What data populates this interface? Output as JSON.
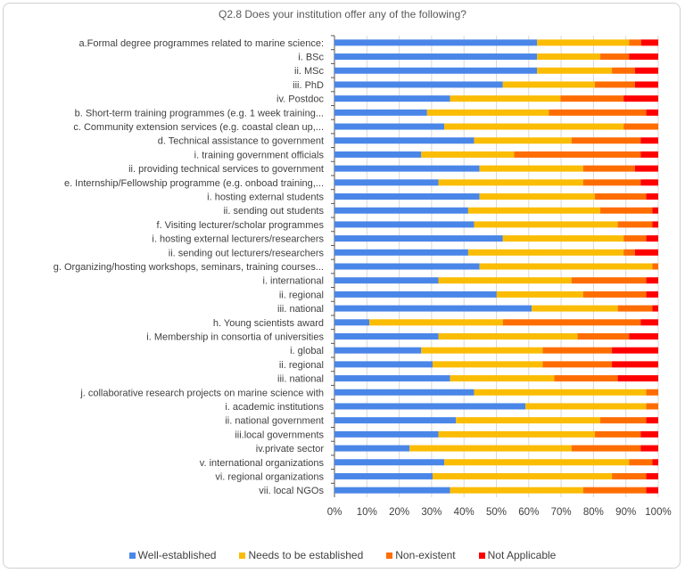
{
  "chart_data": {
    "type": "bar",
    "orientation": "horizontal",
    "stacked": "100%",
    "title": "Q2.8 Does your institution offer any of the following?",
    "xlim": [
      0,
      100
    ],
    "x_ticks": [
      "0%",
      "10%",
      "20%",
      "30%",
      "40%",
      "50%",
      "60%",
      "70%",
      "80%",
      "90%",
      "100%"
    ],
    "grid": "vertical",
    "legend_position": "bottom",
    "categories": [
      "a.Formal degree programmes related to marine science:",
      "i. BSc",
      "ii. MSc",
      "iii. PhD",
      "iv. Postdoc",
      "b. Short-term training programmes (e.g. 1 week training...",
      "c. Community extension services (e.g. coastal clean up,...",
      "d. Technical assistance to government",
      "i. training government officials",
      "ii. providing technical services to government",
      "e. Internship/Fellowship programme (e.g. onboad training,...",
      "i. hosting external students",
      "ii. sending out students",
      "f. Visiting lecturer/scholar programmes",
      "i. hosting external lecturers/researchers",
      "ii. sending out lecturers/researchers",
      "g. Organizing/hosting workshops, seminars, training courses...",
      "i. international",
      "ii. regional",
      "iii. national",
      "h. Young scientists award",
      "i. Membership in consortia of universities",
      "i. global",
      "ii. regional",
      "iii. national",
      "j. collaborative research projects on marine science with",
      "i. academic institutions",
      "ii. national government",
      "iii.local governments",
      "iv.private sector",
      "v. international organizations",
      "vi. regional organizations",
      "vii. local NGOs"
    ],
    "series": [
      {
        "name": "Well-established",
        "color": "#4a86e8",
        "values": [
          62.6,
          62.6,
          62.6,
          52.0,
          35.7,
          28.6,
          33.9,
          43.1,
          26.8,
          44.8,
          32.1,
          44.8,
          41.3,
          43.1,
          52.0,
          41.3,
          44.8,
          32.1,
          50.1,
          60.9,
          10.8,
          32.1,
          26.8,
          30.3,
          35.7,
          43.1,
          59.0,
          37.5,
          32.1,
          23.2,
          33.9,
          30.3,
          35.7
        ]
      },
      {
        "name": "Needs to be established",
        "color": "#fbbc04",
        "values": [
          28.4,
          19.5,
          23.1,
          28.4,
          34.1,
          37.6,
          55.4,
          30.1,
          28.7,
          32.0,
          44.7,
          35.6,
          40.8,
          44.4,
          37.3,
          48.0,
          53.4,
          41.1,
          26.7,
          26.6,
          41.2,
          43.0,
          37.5,
          34.0,
          32.2,
          53.2,
          37.3,
          44.6,
          48.3,
          50.0,
          57.1,
          55.4,
          41.1
        ]
      },
      {
        "name": "Non-existent",
        "color": "#ff6d01",
        "values": [
          3.7,
          8.9,
          7.1,
          12.4,
          19.5,
          30.1,
          10.7,
          21.4,
          39.1,
          16.0,
          17.8,
          15.9,
          16.1,
          10.7,
          7.0,
          3.5,
          1.8,
          23.1,
          19.5,
          10.7,
          42.6,
          15.9,
          21.4,
          21.4,
          19.6,
          3.7,
          3.7,
          14.2,
          14.2,
          21.4,
          7.2,
          10.6,
          19.5
        ]
      },
      {
        "name": "Not Applicable",
        "color": "#ff0000",
        "values": [
          5.3,
          9.0,
          7.2,
          7.2,
          10.7,
          3.7,
          0,
          5.4,
          5.4,
          7.2,
          5.4,
          3.7,
          1.8,
          1.8,
          3.7,
          7.2,
          0,
          3.7,
          3.7,
          1.8,
          5.4,
          9.0,
          14.3,
          14.3,
          12.5,
          0,
          0,
          3.7,
          5.4,
          5.4,
          1.8,
          3.7,
          3.7
        ]
      }
    ]
  }
}
